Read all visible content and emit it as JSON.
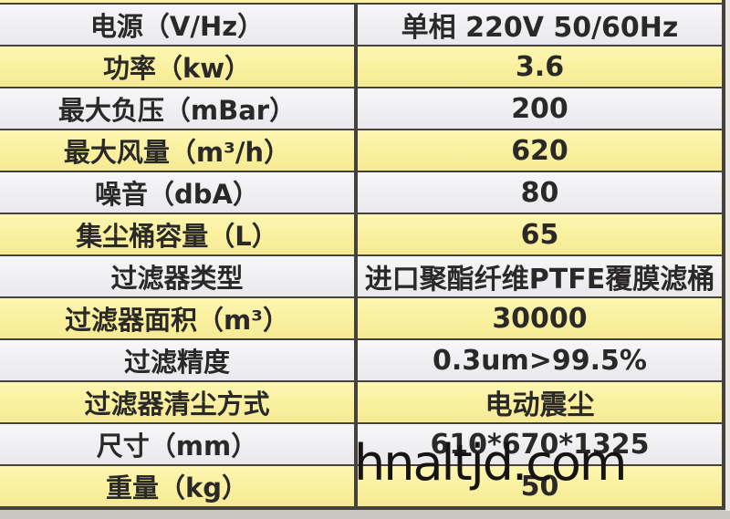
{
  "page": {
    "watermark": "hnaltjd.com"
  },
  "table": {
    "rows": [
      {
        "label": "电源（V/Hz）",
        "value": "单相 220V 50/60Hz"
      },
      {
        "label": "功率（kw）",
        "value": "3.6"
      },
      {
        "label": "最大负压（mBar）",
        "value": "200"
      },
      {
        "label": "最大风量（m³/h）",
        "value": "620"
      },
      {
        "label": "噪音（dbA）",
        "value": "80"
      },
      {
        "label": "集尘桶容量（L）",
        "value": "65"
      },
      {
        "label": "过滤器类型",
        "value": "进口聚酯纤维PTFE覆膜滤桶"
      },
      {
        "label": "过滤器面积（m³）",
        "value": "30000"
      },
      {
        "label": "过滤精度",
        "value": "0.3um>99.5%"
      },
      {
        "label": "过滤器清尘方式",
        "value": "电动震尘"
      },
      {
        "label": "尺寸（mm）",
        "value": "610*670*1325"
      },
      {
        "label": "重量（kg）",
        "value": "50"
      }
    ]
  },
  "colors": {
    "row_yellow": "#faf1a1",
    "row_white": "#f0eff2",
    "border": "#45423d",
    "text": "#2a2927",
    "watermark": "#151413"
  }
}
